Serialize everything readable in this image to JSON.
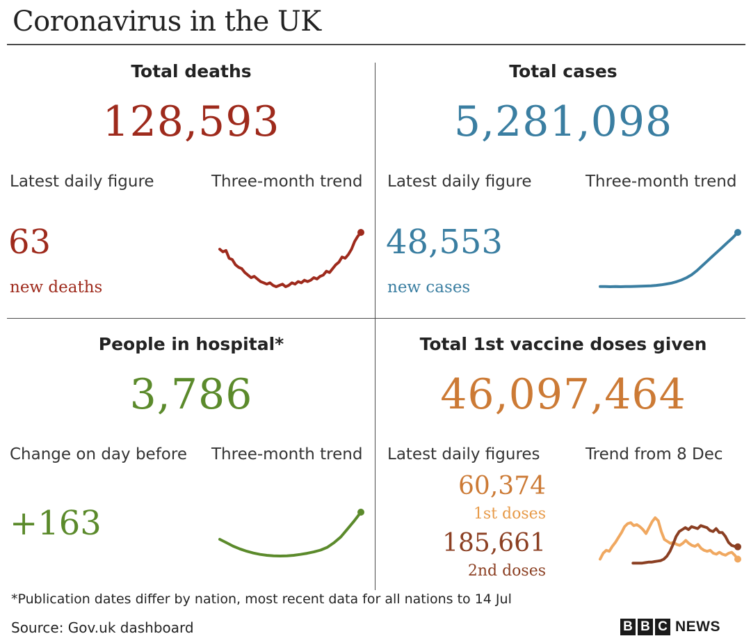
{
  "header": {
    "title": "Coronavirus in the UK"
  },
  "colors": {
    "deaths": "#9e2a1c",
    "cases": "#3a7ea1",
    "hospital": "#5b8a2b",
    "vaccine": "#cc7a35",
    "first_doses": "#f0a860",
    "second_doses": "#8b3f22"
  },
  "deaths": {
    "title": "Total deaths",
    "total": "128,593",
    "latest_label": "Latest daily figure",
    "trend_label": "Three-month trend",
    "latest_value": "63",
    "latest_caption": "new deaths"
  },
  "cases": {
    "title": "Total cases",
    "total": "5,281,098",
    "latest_label": "Latest daily figure",
    "trend_label": "Three-month trend",
    "latest_value": "48,553",
    "latest_caption": "new cases"
  },
  "hospital": {
    "title": "People in hospital*",
    "total": "3,786",
    "change_label": "Change on day before",
    "trend_label": "Three-month trend",
    "change_value": "+163"
  },
  "vaccine": {
    "title": "Total 1st vaccine doses given",
    "total": "46,097,464",
    "latest_label": "Latest daily figures",
    "trend_label": "Trend from 8 Dec",
    "first_value": "60,374",
    "first_caption": "1st doses",
    "second_value": "185,661",
    "second_caption": "2nd doses"
  },
  "footer": {
    "footnote": "*Publication dates differ by nation, most recent data for all nations to 14 Jul",
    "source": "Source: Gov.uk dashboard",
    "logo_letters": [
      "B",
      "B",
      "C"
    ],
    "logo_word": "NEWS"
  },
  "chart_data": [
    {
      "type": "line",
      "title": "Three-month trend",
      "series": [
        {
          "values": [
            62,
            60,
            61,
            55,
            54,
            50,
            48,
            47,
            44,
            42,
            40,
            41,
            39,
            37,
            36,
            35,
            36,
            34,
            33,
            34,
            35,
            33,
            34,
            36,
            35,
            37,
            36,
            38,
            37,
            38,
            40,
            39,
            41,
            42,
            45,
            44,
            47,
            50,
            52,
            56,
            55,
            58,
            62,
            68,
            72,
            75
          ]
        }
      ]
    },
    {
      "type": "line",
      "title": "Three-month trend",
      "series": [
        {
          "values": [
            2.4,
            2.3,
            2.2,
            2.3,
            2.2,
            2.3,
            2.4,
            2.5,
            2.6,
            2.8,
            3.0,
            3.3,
            3.8,
            4.5,
            5.3,
            6.5,
            8.0,
            10.0,
            12.5,
            16.0,
            20.0,
            24.0,
            28.0,
            32.0,
            36.0,
            40.0,
            44.0,
            48.5
          ]
        }
      ]
    },
    {
      "type": "line",
      "title": "Three-month trend",
      "series": [
        {
          "values": [
            2600,
            2450,
            2300,
            2180,
            2080,
            2000,
            1940,
            1900,
            1880,
            1870,
            1880,
            1900,
            1940,
            1990,
            2050,
            2130,
            2250,
            2450,
            2700,
            3050,
            3400,
            3786
          ]
        }
      ]
    },
    {
      "type": "line",
      "title": "Trend from 8 Dec",
      "series": [
        {
          "name": "1st doses",
          "values": [
            60,
            120,
            150,
            140,
            190,
            230,
            280,
            330,
            390,
            420,
            430,
            400,
            410,
            390,
            360,
            320,
            380,
            440,
            480,
            450,
            340,
            260,
            240,
            220,
            230,
            210,
            200,
            220,
            250,
            220,
            200,
            190,
            210,
            170,
            150,
            140,
            150,
            120,
            110,
            130,
            110,
            100,
            120,
            130,
            100,
            60
          ]
        },
        {
          "name": "2nd doses",
          "values": [
            20,
            20,
            20,
            20,
            25,
            30,
            30,
            35,
            40,
            45,
            60,
            90,
            140,
            210,
            290,
            340,
            360,
            380,
            360,
            390,
            380,
            370,
            400,
            390,
            380,
            350,
            340,
            370,
            330,
            330,
            290,
            230,
            200,
            190,
            185
          ]
        }
      ]
    }
  ]
}
